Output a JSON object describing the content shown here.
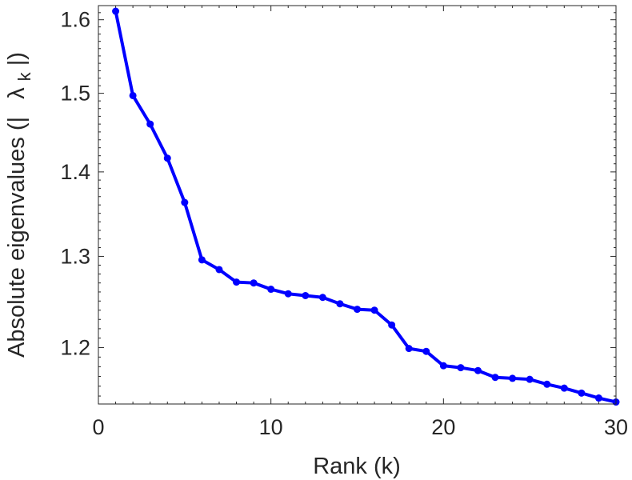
{
  "chart_data": {
    "type": "line",
    "title": "",
    "xlabel": "Rank (k)",
    "ylabel": "Absolute eigenvalues (|λ_k|)",
    "ylabel_parts": {
      "prefix": "Absolute eigenvalues (|",
      "symbol": "λ",
      "subscript": "k",
      "suffix": "|)"
    },
    "xlim": [
      0,
      30
    ],
    "ylim": [
      1.142,
      1.62
    ],
    "ylog": true,
    "grid": false,
    "box": true,
    "xticks": [
      0,
      10,
      20,
      30
    ],
    "xtick_labels": [
      "0",
      "10",
      "20",
      "30"
    ],
    "yticks": [
      1.2,
      1.3,
      1.4,
      1.5,
      1.6
    ],
    "ytick_labels": [
      "1.2",
      "1.3",
      "1.4",
      "1.5",
      "1.6"
    ],
    "x_minor_step": 1,
    "y_minor_step": 0.01,
    "line_color": "#0000FF",
    "marker": "dot",
    "series": [
      {
        "x": [
          1,
          2,
          3,
          4,
          5,
          6,
          7,
          8,
          9,
          10,
          11,
          12,
          13,
          14,
          15,
          16,
          17,
          18,
          19,
          20,
          21,
          22,
          23,
          24,
          25,
          26,
          27,
          28,
          29,
          30
        ],
        "values": [
          1.612,
          1.497,
          1.46,
          1.417,
          1.363,
          1.296,
          1.285,
          1.271,
          1.27,
          1.263,
          1.258,
          1.256,
          1.254,
          1.247,
          1.241,
          1.24,
          1.224,
          1.199,
          1.196,
          1.181,
          1.179,
          1.176,
          1.169,
          1.168,
          1.167,
          1.162,
          1.158,
          1.153,
          1.148,
          1.144
        ]
      }
    ]
  }
}
